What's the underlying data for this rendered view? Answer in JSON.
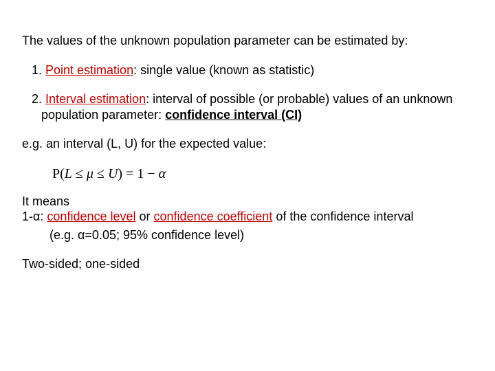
{
  "colors": {
    "text": "#000000",
    "accent": "#c00000",
    "background": "#ffffff"
  },
  "typography": {
    "body_font": "Arial",
    "body_size_pt": 14,
    "formula_font": "Times New Roman",
    "formula_size_pt": 15
  },
  "intro": "The values of the unknown population parameter can be estimated by:",
  "item1": {
    "num": "1. ",
    "heading": "Point estimation",
    "rest": ": single value (known as statistic)"
  },
  "item2": {
    "num": "2. ",
    "heading": "Interval estimation",
    "rest_a": ": interval of possible (or probable) values of an unknown population parameter: ",
    "term": "confidence interval  (CI)"
  },
  "example_line": "e.g. an interval (L, U) for the expected value:",
  "formula": "P(L ≤ μ ≤ U) = 1 − α",
  "means": "It means",
  "conf_line": {
    "prefix": "1-α: ",
    "a": "confidence level",
    "mid": " or ",
    "b": "confidence coefficient",
    "suffix": " of the confidence interval"
  },
  "eg_line": "(e.g. α=0.05;  95% confidence level)",
  "last": "Two-sided; one-sided"
}
